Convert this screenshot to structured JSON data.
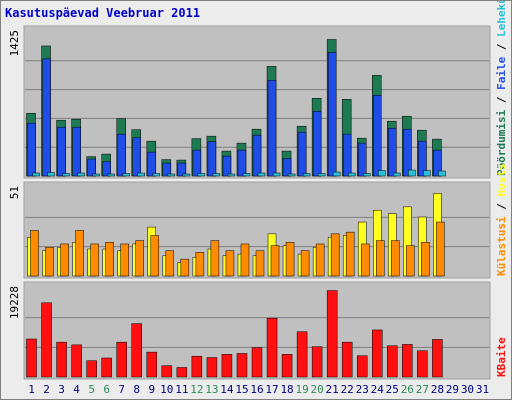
{
  "title": "Kasutuspäevad Veebruar 2011",
  "colors": {
    "panel_bg": "#c0c0c0",
    "gridline": "#7f7f7f",
    "hits": "#1e7a52",
    "files": "#1f4de8",
    "pages": "#29c0d8",
    "visits": "#ff8c00",
    "sites": "#ffff20",
    "kbytes": "#ff1010",
    "weekend_label": "#2e8b57",
    "weekday_label": "#000080",
    "future_label": "#000080"
  },
  "chart_data": [
    {
      "type": "bar",
      "title": "",
      "ymax_label": "1425",
      "legend": [
        {
          "name": "Pöördumisi",
          "color": "#1e7a52"
        },
        {
          "name": "Faile",
          "color": "#1f4de8"
        },
        {
          "name": "Lehekülgi",
          "color": "#29c0d8"
        }
      ],
      "categories": [
        "1",
        "2",
        "3",
        "4",
        "5",
        "6",
        "7",
        "8",
        "9",
        "10",
        "11",
        "12",
        "13",
        "14",
        "15",
        "16",
        "17",
        "18",
        "19",
        "20",
        "21",
        "22",
        "23",
        "24",
        "25",
        "26",
        "27",
        "28",
        "29",
        "30",
        "31"
      ],
      "weekend": [
        false,
        false,
        false,
        false,
        true,
        true,
        false,
        false,
        false,
        false,
        false,
        true,
        true,
        false,
        false,
        false,
        false,
        false,
        true,
        true,
        false,
        false,
        false,
        false,
        false,
        true,
        true,
        false,
        false,
        false,
        false
      ],
      "series": [
        {
          "name": "Pöördumisi",
          "values": [
            630,
            1305,
            560,
            570,
            195,
            220,
            575,
            465,
            350,
            165,
            160,
            375,
            400,
            250,
            330,
            470,
            1100,
            250,
            500,
            780,
            1370,
            770,
            380,
            1010,
            550,
            600,
            460,
            370,
            0,
            0,
            0
          ]
        },
        {
          "name": "Faile",
          "values": [
            530,
            1175,
            490,
            490,
            170,
            145,
            420,
            385,
            240,
            130,
            130,
            260,
            345,
            200,
            260,
            410,
            960,
            175,
            440,
            650,
            1240,
            420,
            330,
            810,
            480,
            470,
            350,
            260,
            0,
            0,
            0
          ]
        },
        {
          "name": "Lehekülgi",
          "values": [
            30,
            35,
            25,
            30,
            20,
            20,
            25,
            30,
            25,
            20,
            20,
            25,
            25,
            20,
            25,
            30,
            30,
            20,
            25,
            25,
            40,
            30,
            25,
            55,
            30,
            60,
            55,
            50,
            0,
            0,
            0
          ]
        }
      ],
      "ylim": [
        0,
        1425
      ]
    },
    {
      "type": "bar",
      "title": "",
      "ymax_label": "51",
      "legend": [
        {
          "name": "Külastusi",
          "color": "#ff8c00"
        },
        {
          "name": "Hosts",
          "color": "#ffff20"
        }
      ],
      "categories": [
        "1",
        "2",
        "3",
        "4",
        "5",
        "6",
        "7",
        "8",
        "9",
        "10",
        "11",
        "12",
        "13",
        "14",
        "15",
        "16",
        "17",
        "18",
        "19",
        "20",
        "21",
        "22",
        "23",
        "24",
        "25",
        "26",
        "27",
        "28",
        "29",
        "30",
        "31"
      ],
      "series": [
        {
          "name": "Külastusi",
          "values": [
            27,
            17,
            19,
            27,
            19,
            20,
            19,
            21,
            24,
            15,
            10,
            14,
            21,
            15,
            19,
            15,
            18,
            20,
            15,
            19,
            25,
            26,
            19,
            21,
            21,
            18,
            20,
            32,
            0,
            0,
            0
          ]
        },
        {
          "name": "Hosts",
          "values": [
            23,
            15,
            17,
            20,
            16,
            16,
            15,
            19,
            29,
            12,
            8,
            11,
            16,
            12,
            13,
            12,
            25,
            18,
            13,
            17,
            23,
            24,
            32,
            39,
            37,
            41,
            35,
            49,
            0,
            0,
            0
          ]
        }
      ],
      "ylim": [
        0,
        51
      ]
    },
    {
      "type": "bar",
      "title": "",
      "ymax_label": "19228",
      "legend": [
        {
          "name": "KBaite",
          "color": "#ff1010"
        }
      ],
      "categories": [
        "1",
        "2",
        "3",
        "4",
        "5",
        "6",
        "7",
        "8",
        "9",
        "10",
        "11",
        "12",
        "13",
        "14",
        "15",
        "16",
        "17",
        "18",
        "19",
        "20",
        "21",
        "22",
        "23",
        "24",
        "25",
        "26",
        "27",
        "28",
        "29",
        "30",
        "31"
      ],
      "series": [
        {
          "name": "KBaite",
          "values": [
            8400,
            16400,
            7700,
            7100,
            3600,
            4200,
            7700,
            11800,
            5500,
            2500,
            2100,
            4600,
            4300,
            5000,
            5200,
            6500,
            13000,
            5000,
            10000,
            6700,
            19100,
            7700,
            4700,
            10400,
            6900,
            7200,
            5800,
            8300,
            0,
            0,
            0
          ]
        }
      ],
      "ylim": [
        0,
        19228
      ]
    }
  ]
}
